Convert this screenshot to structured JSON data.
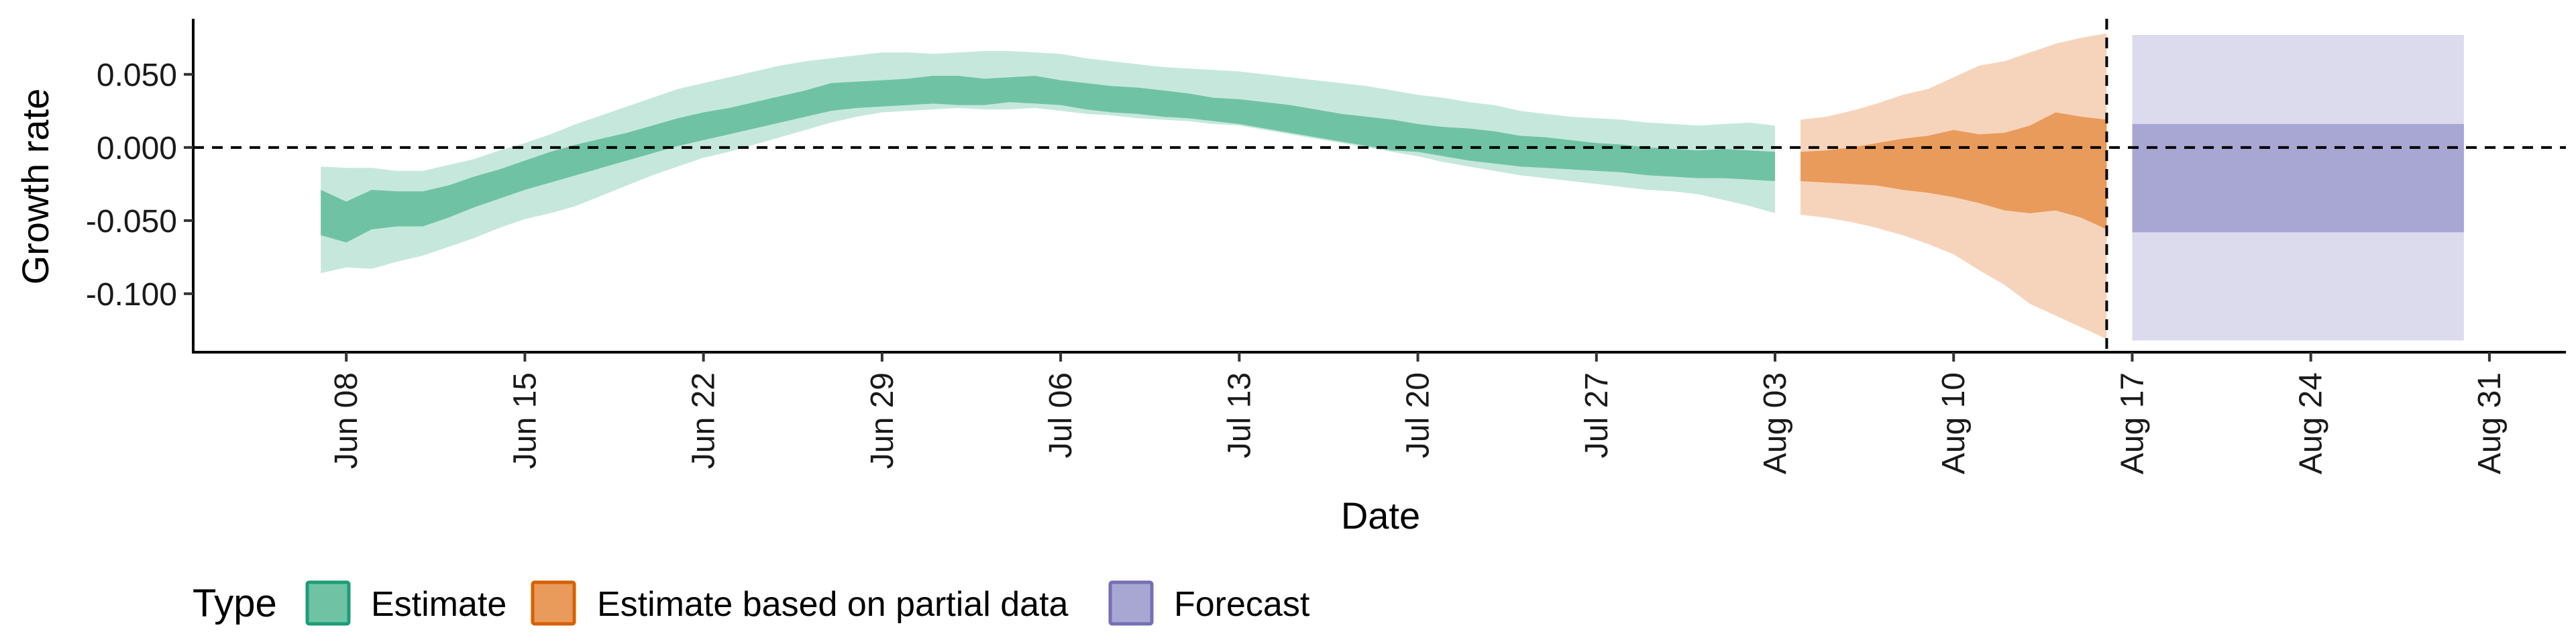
{
  "chart_data": {
    "type": "area",
    "xlabel": "Date",
    "ylabel": "Growth rate",
    "x_ticks": [
      "Jun 08",
      "Jun 15",
      "Jun 22",
      "Jun 29",
      "Jul 06",
      "Jul 13",
      "Jul 20",
      "Jul 27",
      "Aug 03",
      "Aug 10",
      "Aug 17",
      "Aug 24",
      "Aug 31"
    ],
    "y_ticks": [
      "0.050",
      "0.000",
      "-0.050",
      "-0.100"
    ],
    "y_tick_values": [
      0.05,
      0.0,
      -0.05,
      -0.1
    ],
    "ylim": [
      -0.14,
      0.088
    ],
    "xlim": [
      "2020-06-02",
      "2020-09-03"
    ],
    "reference_lines": {
      "horizontal_y": 0.0,
      "vertical_date": "2020-08-16"
    },
    "legend": {
      "title": "Type",
      "position": "bottom-left",
      "entries": [
        "Estimate",
        "Estimate based on partial data",
        "Forecast"
      ]
    },
    "colors": {
      "estimate_inner": "#6fc3a4",
      "estimate_outer": "#c6e8dc",
      "partial_inner": "#e99b5b",
      "partial_outer": "#f6d4bb",
      "forecast_inner": "#a8a6d3",
      "forecast_outer": "#dcdbee",
      "legend_estimate_border": "#1b9e77",
      "legend_partial_border": "#d95f02",
      "legend_forecast_border": "#7570b3"
    },
    "series": [
      {
        "name": "Estimate",
        "dates": [
          "2020-06-07",
          "2020-06-08",
          "2020-06-09",
          "2020-06-10",
          "2020-06-11",
          "2020-06-12",
          "2020-06-13",
          "2020-06-14",
          "2020-06-15",
          "2020-06-16",
          "2020-06-17",
          "2020-06-18",
          "2020-06-19",
          "2020-06-20",
          "2020-06-21",
          "2020-06-22",
          "2020-06-23",
          "2020-06-24",
          "2020-06-25",
          "2020-06-26",
          "2020-06-27",
          "2020-06-28",
          "2020-06-29",
          "2020-06-30",
          "2020-07-01",
          "2020-07-02",
          "2020-07-03",
          "2020-07-04",
          "2020-07-05",
          "2020-07-06",
          "2020-07-07",
          "2020-07-08",
          "2020-07-09",
          "2020-07-10",
          "2020-07-11",
          "2020-07-12",
          "2020-07-13",
          "2020-07-14",
          "2020-07-15",
          "2020-07-16",
          "2020-07-17",
          "2020-07-18",
          "2020-07-19",
          "2020-07-20",
          "2020-07-21",
          "2020-07-22",
          "2020-07-23",
          "2020-07-24",
          "2020-07-25",
          "2020-07-26",
          "2020-07-27",
          "2020-07-28",
          "2020-07-29",
          "2020-07-30",
          "2020-07-31",
          "2020-08-01",
          "2020-08-02",
          "2020-08-03"
        ],
        "lower90": [
          -0.086,
          -0.082,
          -0.083,
          -0.078,
          -0.074,
          -0.068,
          -0.062,
          -0.055,
          -0.049,
          -0.045,
          -0.04,
          -0.033,
          -0.026,
          -0.019,
          -0.013,
          -0.007,
          -0.003,
          0.002,
          0.007,
          0.012,
          0.017,
          0.021,
          0.024,
          0.025,
          0.026,
          0.027,
          0.026,
          0.026,
          0.027,
          0.025,
          0.023,
          0.022,
          0.02,
          0.019,
          0.018,
          0.016,
          0.015,
          0.012,
          0.009,
          0.006,
          0.003,
          0.0,
          -0.003,
          -0.006,
          -0.01,
          -0.013,
          -0.016,
          -0.019,
          -0.021,
          -0.023,
          -0.025,
          -0.027,
          -0.029,
          -0.03,
          -0.032,
          -0.036,
          -0.04,
          -0.045
        ],
        "lower50": [
          -0.06,
          -0.065,
          -0.056,
          -0.054,
          -0.054,
          -0.048,
          -0.041,
          -0.035,
          -0.029,
          -0.024,
          -0.019,
          -0.014,
          -0.009,
          -0.004,
          0.001,
          0.005,
          0.009,
          0.013,
          0.017,
          0.021,
          0.025,
          0.027,
          0.028,
          0.029,
          0.03,
          0.029,
          0.029,
          0.031,
          0.03,
          0.029,
          0.026,
          0.024,
          0.023,
          0.021,
          0.02,
          0.018,
          0.016,
          0.013,
          0.01,
          0.007,
          0.004,
          0.001,
          -0.002,
          -0.003,
          -0.006,
          -0.009,
          -0.011,
          -0.013,
          -0.014,
          -0.015,
          -0.016,
          -0.017,
          -0.019,
          -0.02,
          -0.021,
          -0.021,
          -0.022,
          -0.023
        ],
        "upper50": [
          -0.029,
          -0.037,
          -0.029,
          -0.03,
          -0.03,
          -0.026,
          -0.02,
          -0.015,
          -0.009,
          -0.003,
          0.002,
          0.006,
          0.01,
          0.015,
          0.02,
          0.024,
          0.027,
          0.031,
          0.035,
          0.039,
          0.044,
          0.045,
          0.046,
          0.047,
          0.049,
          0.049,
          0.047,
          0.048,
          0.049,
          0.046,
          0.044,
          0.042,
          0.041,
          0.039,
          0.037,
          0.034,
          0.033,
          0.031,
          0.029,
          0.026,
          0.023,
          0.021,
          0.019,
          0.016,
          0.014,
          0.013,
          0.011,
          0.008,
          0.007,
          0.005,
          0.003,
          0.002,
          0.0,
          -0.001,
          -0.002,
          -0.001,
          -0.002,
          -0.003
        ],
        "upper90": [
          -0.013,
          -0.014,
          -0.014,
          -0.016,
          -0.016,
          -0.012,
          -0.008,
          -0.002,
          0.003,
          0.009,
          0.016,
          0.022,
          0.028,
          0.034,
          0.04,
          0.044,
          0.048,
          0.052,
          0.056,
          0.059,
          0.061,
          0.063,
          0.065,
          0.065,
          0.064,
          0.065,
          0.066,
          0.066,
          0.065,
          0.064,
          0.061,
          0.059,
          0.057,
          0.055,
          0.054,
          0.053,
          0.052,
          0.05,
          0.048,
          0.046,
          0.044,
          0.042,
          0.039,
          0.036,
          0.034,
          0.031,
          0.029,
          0.025,
          0.023,
          0.021,
          0.02,
          0.019,
          0.017,
          0.016,
          0.015,
          0.016,
          0.017,
          0.015
        ]
      },
      {
        "name": "Estimate based on partial data",
        "dates": [
          "2020-08-04",
          "2020-08-05",
          "2020-08-06",
          "2020-08-07",
          "2020-08-08",
          "2020-08-09",
          "2020-08-10",
          "2020-08-11",
          "2020-08-12",
          "2020-08-13",
          "2020-08-14",
          "2020-08-15",
          "2020-08-16"
        ],
        "lower90": [
          -0.046,
          -0.048,
          -0.051,
          -0.055,
          -0.06,
          -0.066,
          -0.073,
          -0.084,
          -0.094,
          -0.107,
          -0.115,
          -0.123,
          -0.131
        ],
        "lower50": [
          -0.023,
          -0.024,
          -0.025,
          -0.026,
          -0.029,
          -0.031,
          -0.034,
          -0.038,
          -0.043,
          -0.045,
          -0.043,
          -0.048,
          -0.056
        ],
        "upper50": [
          -0.003,
          -0.002,
          0.0,
          0.003,
          0.006,
          0.008,
          0.012,
          0.009,
          0.01,
          0.015,
          0.024,
          0.021,
          0.019
        ],
        "upper90": [
          0.019,
          0.021,
          0.025,
          0.03,
          0.036,
          0.04,
          0.048,
          0.056,
          0.059,
          0.065,
          0.071,
          0.075,
          0.078
        ]
      },
      {
        "name": "Forecast",
        "dates": [
          "2020-08-17",
          "2020-08-30"
        ],
        "lower90": [
          -0.132,
          -0.132
        ],
        "lower50": [
          -0.058,
          -0.058
        ],
        "upper50": [
          0.016,
          0.016
        ],
        "upper90": [
          0.077,
          0.077
        ]
      }
    ]
  }
}
